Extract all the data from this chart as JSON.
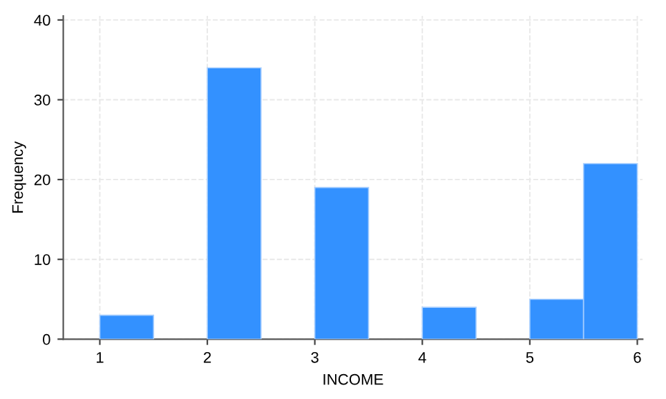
{
  "chart_data": {
    "type": "histogram",
    "xlabel": "INCOME",
    "ylabel": "Frequency",
    "bins": [
      1,
      1.5,
      2,
      2.5,
      3,
      3.5,
      4,
      4.5,
      5,
      5.5,
      6
    ],
    "values": [
      3,
      0,
      34,
      0,
      19,
      0,
      4,
      0,
      5,
      22
    ],
    "color": "#3391ff",
    "xlim": [
      0.66,
      6.05
    ],
    "xticks": [
      1,
      2,
      3,
      4,
      5,
      6
    ],
    "ylim": [
      0,
      40.5
    ],
    "yticks": [
      0,
      10,
      20,
      30,
      40
    ],
    "grid": true
  }
}
